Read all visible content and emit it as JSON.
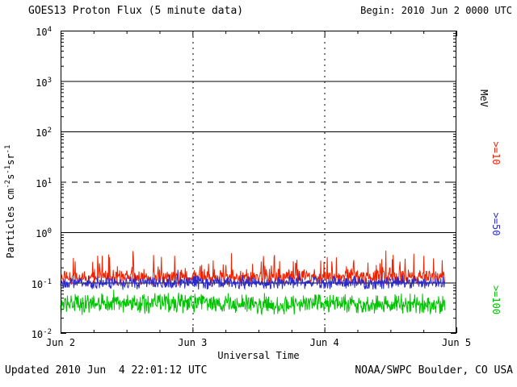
{
  "header": {
    "title": "GOES13 Proton Flux (5 minute data)",
    "begin": "Begin: 2010 Jun 2 0000 UTC"
  },
  "footer": {
    "updated": "Updated 2010 Jun  4 22:01:12 UTC",
    "source": "NOAA/SWPC Boulder, CO USA"
  },
  "chart_data": {
    "type": "line",
    "title": "GOES13 Proton Flux (5 minute data)",
    "xlabel": "Universal Time",
    "ylabel_segments": [
      {
        "text": "Particles cm"
      },
      {
        "sup": "-2"
      },
      {
        "text": "s"
      },
      {
        "sup": "-1"
      },
      {
        "text": "sr"
      },
      {
        "sup": "-1"
      }
    ],
    "right_axis_unit": "MeV",
    "x_tick_labels": [
      "Jun 2",
      "Jun 3",
      "Jun 4",
      "Jun 5"
    ],
    "xlim_days": [
      0,
      3
    ],
    "y_tick_exponents": [
      4,
      3,
      2,
      1,
      0,
      -1,
      -2
    ],
    "y_tick_labels": [
      "10^4",
      "10^3",
      "10^2",
      "10^1",
      "10^0",
      "10^-1",
      "10^-2"
    ],
    "ylim_log10": [
      -2,
      4
    ],
    "grid": {
      "hlines_log10": [
        {
          "at": 3,
          "style": "solid"
        },
        {
          "at": 2,
          "style": "solid"
        },
        {
          "at": 1,
          "style": "dashed"
        },
        {
          "at": 0,
          "style": "solid"
        },
        {
          "at": -1,
          "style": "solid"
        }
      ],
      "vlines_days": [
        1,
        2
      ],
      "vline_style": "dotted"
    },
    "points_per_day": 288,
    "days_of_data": 2.917,
    "series": [
      {
        "label": ">=10",
        "unit": "MeV",
        "color": "#ec2200",
        "base_log10": -0.9,
        "noise_log10": 0.18,
        "spike_prob": 0.12,
        "spike_max_log10": 0.45,
        "approx_range_particles": [
          0.08,
          0.6
        ],
        "seed": 11
      },
      {
        "label": ">=50",
        "unit": "MeV",
        "color": "#2b2bc8",
        "base_log10": -1.0,
        "noise_log10": 0.15,
        "spike_prob": 0.03,
        "spike_max_log10": 0.15,
        "approx_range_particles": [
          0.06,
          0.16
        ],
        "seed": 23
      },
      {
        "label": ">=100",
        "unit": "MeV",
        "color": "#00c400",
        "base_log10": -1.42,
        "noise_log10": 0.24,
        "spike_prob": 0.02,
        "spike_max_log10": 0.15,
        "approx_range_particles": [
          0.017,
          0.07
        ],
        "seed": 37
      }
    ]
  }
}
